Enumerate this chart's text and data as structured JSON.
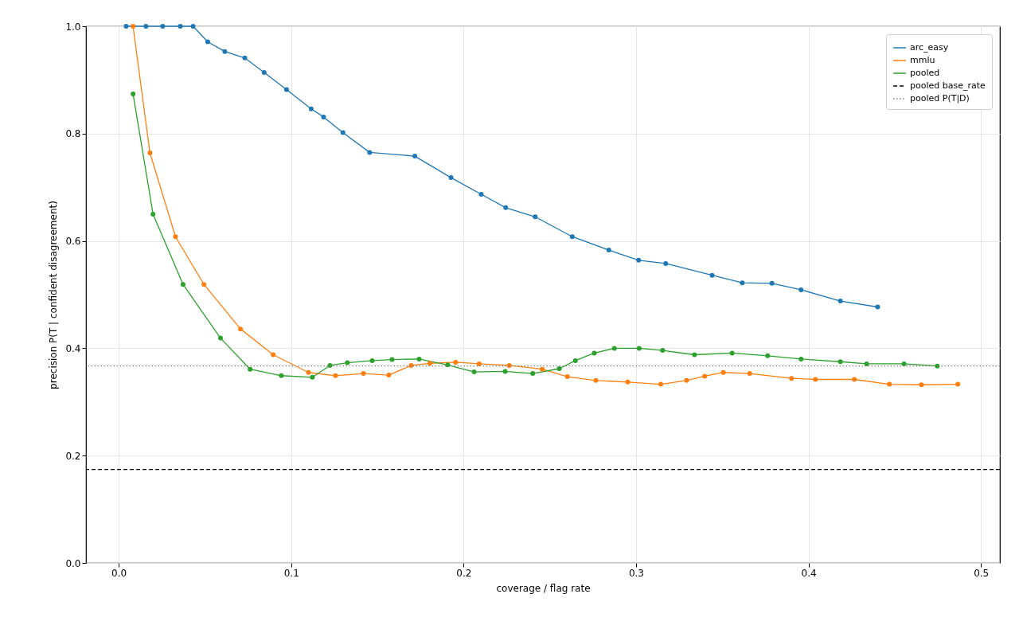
{
  "chart_data": {
    "type": "line",
    "xlabel": "coverage / flag rate",
    "ylabel": "precision P(T | confident disagreement)",
    "xlim": [
      -0.019,
      0.511
    ],
    "ylim": [
      0,
      1
    ],
    "xticks": [
      {
        "value": 0,
        "label": "0.0"
      },
      0.1,
      0.2,
      0.3,
      0.4,
      0.5
    ],
    "yticks": [
      {
        "value": 0,
        "label": "0.0"
      },
      0.2,
      0.4,
      0.6,
      0.8,
      {
        "value": 1,
        "label": "1.0"
      }
    ],
    "grid": true,
    "legend": "top right",
    "marker": "circle",
    "line_style": "solid",
    "series": [
      {
        "name": "arc_easy",
        "color": "#1f77b4",
        "x": [
          0.0043,
          0.0158,
          0.0255,
          0.0357,
          0.0431,
          0.0516,
          0.0615,
          0.0731,
          0.0843,
          0.0973,
          0.1116,
          0.1188,
          0.13,
          0.1455,
          0.1717,
          0.1927,
          0.2102,
          0.2244,
          0.2415,
          0.263,
          0.2842,
          0.3015,
          0.3172,
          0.3441,
          0.3616,
          0.3788,
          0.3957,
          0.4185,
          0.4401
        ],
        "values": [
          1.0,
          1.0,
          1.0,
          1.0,
          1.0,
          0.971,
          0.953,
          0.941,
          0.914,
          0.882,
          0.846,
          0.831,
          0.802,
          0.765,
          0.758,
          0.718,
          0.687,
          0.662,
          0.645,
          0.608,
          0.583,
          0.564,
          0.558,
          0.536,
          0.522,
          0.521,
          0.509,
          0.488,
          0.477
        ]
      },
      {
        "name": "mmlu",
        "color": "#ff7f0e",
        "x": [
          0.0083,
          0.0181,
          0.0329,
          0.0494,
          0.0706,
          0.0896,
          0.11,
          0.1257,
          0.1419,
          0.1566,
          0.1696,
          0.1804,
          0.1954,
          0.209,
          0.2265,
          0.2456,
          0.2602,
          0.2767,
          0.2952,
          0.3143,
          0.3293,
          0.3398,
          0.3506,
          0.3659,
          0.3902,
          0.404,
          0.4266,
          0.4469,
          0.4655,
          0.4866
        ],
        "values": [
          1.0,
          0.764,
          0.608,
          0.519,
          0.436,
          0.388,
          0.355,
          0.349,
          0.353,
          0.35,
          0.368,
          0.372,
          0.374,
          0.371,
          0.368,
          0.361,
          0.347,
          0.34,
          0.337,
          0.333,
          0.34,
          0.348,
          0.355,
          0.353,
          0.344,
          0.342,
          0.342,
          0.333,
          0.332,
          0.333
        ]
      },
      {
        "name": "pooled",
        "color": "#2ca02c",
        "x": [
          0.0083,
          0.0199,
          0.0373,
          0.059,
          0.0762,
          0.0943,
          0.1123,
          0.1225,
          0.1326,
          0.147,
          0.1585,
          0.1742,
          0.1908,
          0.2061,
          0.2241,
          0.2401,
          0.2555,
          0.2648,
          0.2758,
          0.2874,
          0.3018,
          0.3154,
          0.3339,
          0.3557,
          0.3763,
          0.3957,
          0.4185,
          0.4337,
          0.4554,
          0.4747
        ],
        "values": [
          0.874,
          0.65,
          0.519,
          0.419,
          0.361,
          0.349,
          0.346,
          0.368,
          0.373,
          0.377,
          0.379,
          0.38,
          0.369,
          0.356,
          0.357,
          0.353,
          0.362,
          0.377,
          0.391,
          0.4,
          0.4,
          0.396,
          0.388,
          0.391,
          0.386,
          0.38,
          0.375,
          0.371,
          0.371,
          0.367
        ]
      }
    ],
    "ref_lines": [
      {
        "axis": "y",
        "value": 0.174,
        "label": "pooled base_rate",
        "color": "#000000",
        "line_style": "dashed"
      },
      {
        "axis": "y",
        "value": 0.367,
        "label": "pooled P(T|D)",
        "color": "#808080",
        "line_style": "dotted"
      }
    ]
  }
}
